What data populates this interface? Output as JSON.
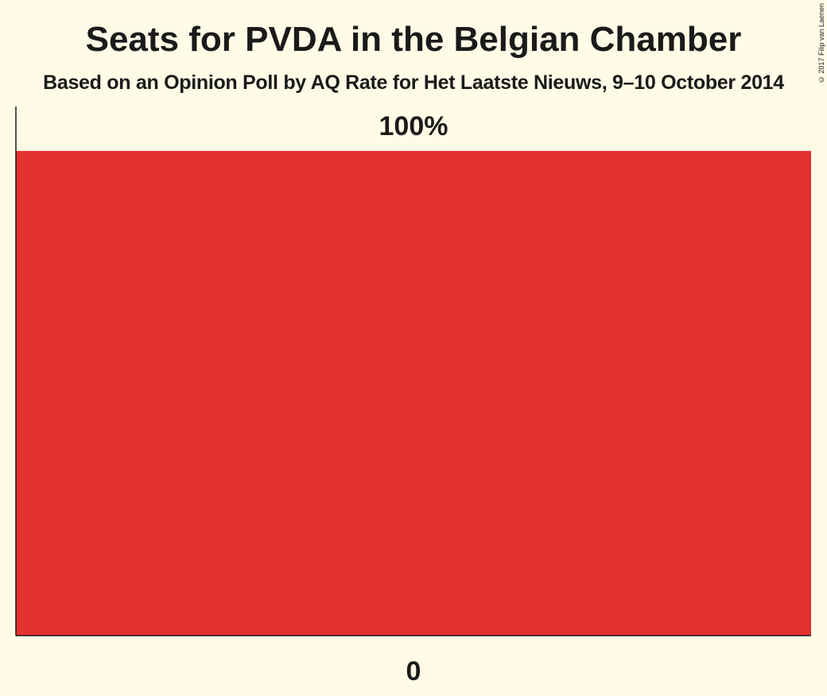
{
  "chart_data": {
    "type": "bar",
    "title": "Seats for PVDA in the Belgian Chamber",
    "subtitle": "Based on an Opinion Poll by AQ Rate for Het Laatste Nieuws, 9–10 October 2014",
    "categories": [
      "0"
    ],
    "values": [
      100
    ],
    "data_labels": [
      "100%"
    ],
    "xlabel": "",
    "ylabel": "",
    "ylim": [
      0,
      100
    ],
    "grid": false,
    "bar_color": "#e53030"
  },
  "copyright": "© 2017 Filip van Laenen",
  "colors": {
    "background": "#fffbe6",
    "bar": "#e53030",
    "axis": "#1a1a1a"
  }
}
